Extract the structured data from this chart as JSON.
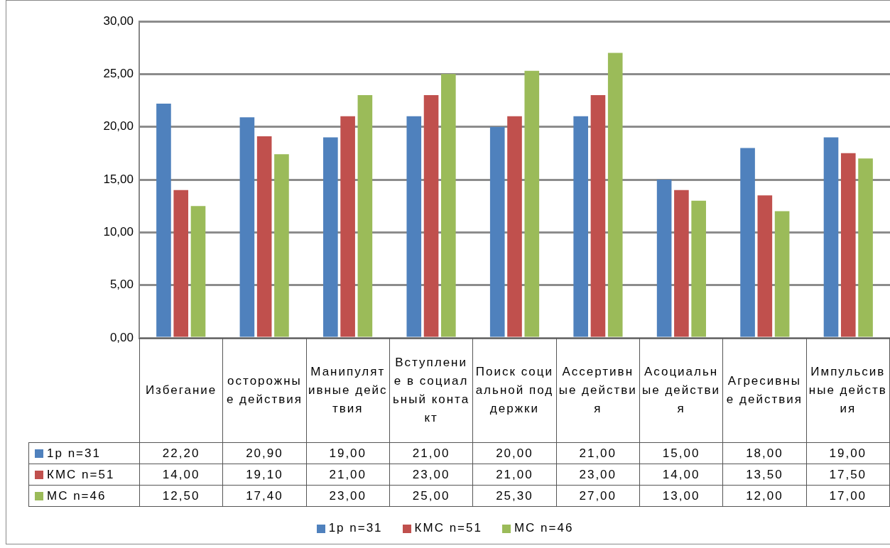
{
  "chart_data": {
    "type": "bar",
    "categories": [
      "Избегание",
      "осторожные действия",
      "Манипулятивные действия",
      "Вступление в социальный контакт",
      "Поиск социальной поддержки",
      "Ассертивные действия",
      "Асоциальные действия",
      "Агресивные действия",
      "Импульсивные действия"
    ],
    "series": [
      {
        "name": "1р n=31",
        "color": "#4f81bd",
        "values": [
          22.2,
          20.9,
          19.0,
          21.0,
          20.0,
          21.0,
          15.0,
          18.0,
          19.0
        ],
        "value_labels": [
          "22,20",
          "20,90",
          "19,00",
          "21,00",
          "20,00",
          "21,00",
          "15,00",
          "18,00",
          "19,00"
        ]
      },
      {
        "name": "КМС n=51",
        "color": "#c0504d",
        "values": [
          14.0,
          19.1,
          21.0,
          23.0,
          21.0,
          23.0,
          14.0,
          13.5,
          17.5
        ],
        "value_labels": [
          "14,00",
          "19,10",
          "21,00",
          "23,00",
          "21,00",
          "23,00",
          "14,00",
          "13,50",
          "17,50"
        ]
      },
      {
        "name": "МС n=46",
        "color": "#9bbb59",
        "values": [
          12.5,
          17.4,
          23.0,
          25.0,
          25.3,
          27.0,
          13.0,
          12.0,
          17.0
        ],
        "value_labels": [
          "12,50",
          "17,40",
          "23,00",
          "25,00",
          "25,30",
          "27,00",
          "13,00",
          "12,00",
          "17,00"
        ]
      }
    ],
    "ylim": [
      0,
      30
    ],
    "yticks": [
      {
        "value": 0,
        "label": "0,00"
      },
      {
        "value": 5,
        "label": "5,00"
      },
      {
        "value": 10,
        "label": "10,00"
      },
      {
        "value": 15,
        "label": "15,00"
      },
      {
        "value": 20,
        "label": "20,00"
      },
      {
        "value": 25,
        "label": "25,00"
      },
      {
        "value": 30,
        "label": "30,00"
      }
    ],
    "grid": "y",
    "legend": "bottom"
  }
}
